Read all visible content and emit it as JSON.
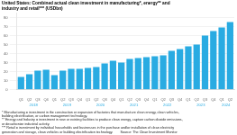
{
  "chart_data": {
    "type": "bar",
    "title": [
      "United States: Combined actual clean investment in manufacturing*, energy** and",
      "industry and retail*** (USDbn)"
    ],
    "categories": [
      "Q1",
      "Q2",
      "Q3",
      "Q4",
      "Q1",
      "Q2",
      "Q3",
      "Q4",
      "Q1",
      "Q2",
      "Q3",
      "Q4",
      "Q1",
      "Q2",
      "Q3",
      "Q4",
      "Q1",
      "Q2",
      "Q3",
      "Q4",
      "Q1",
      "Q2",
      "Q3",
      "Q4",
      "Q1",
      "Q2"
    ],
    "x_groups": [
      "2018",
      "2019",
      "2020",
      "2021",
      "2022",
      "2023",
      "2024"
    ],
    "values": [
      14,
      17,
      21,
      22,
      16,
      21,
      23,
      23,
      24,
      25,
      29,
      32,
      30,
      34,
      35,
      36,
      37,
      38,
      43,
      45,
      48,
      50,
      60,
      65,
      69,
      75
    ],
    "color": "#29ABE2",
    "ylim": [
      0,
      85
    ],
    "yticks": [
      0,
      10,
      20,
      30,
      40,
      50,
      60,
      70,
      80
    ],
    "grid": true,
    "annotations": [
      "* Manufacturing = investment in the construction or expansion of factories that manufacture clean energy, clean vehicles,",
      "building electrification, or carbon management technology.",
      "** Energy and Industry = investment in new or existing facilities to produce clean energy, capture carbon dioxide emissions,",
      "or decarbonize industrial activity.",
      "*** Retail = investment by individual households and businesses in the purchase and/or installation of clean electricity",
      "generation and storage, clean vehicles or building electrification technology.        Source: The Clean Investment Monitor"
    ]
  }
}
